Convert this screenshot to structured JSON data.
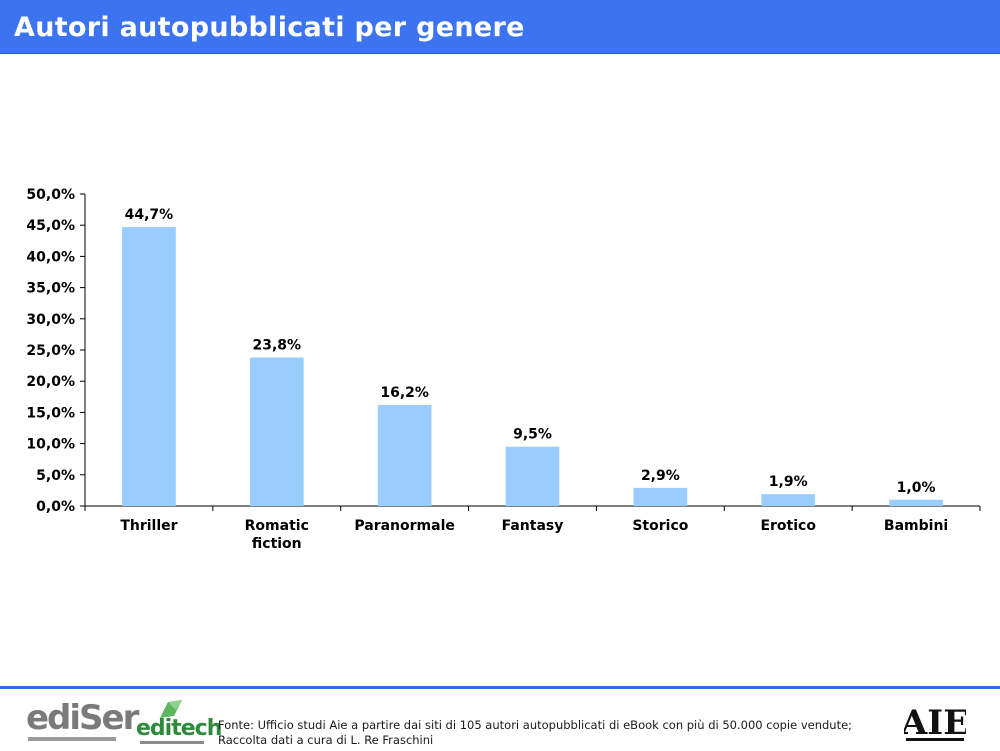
{
  "header": {
    "title": "Autori autopubblicati per genere"
  },
  "chart_data": {
    "type": "bar",
    "categories": [
      "Thriller",
      "Romatic fiction",
      "Paranormale",
      "Fantasy",
      "Storico",
      "Erotico",
      "Bambini"
    ],
    "values": [
      44.7,
      23.8,
      16.2,
      9.5,
      2.9,
      1.9,
      1.0
    ],
    "data_labels": [
      "44,7%",
      "23,8%",
      "16,2%",
      "9,5%",
      "2,9%",
      "1,9%",
      "1,0%"
    ],
    "y_ticks": [
      "0,0%",
      "5,0%",
      "10,0%",
      "15,0%",
      "20,0%",
      "25,0%",
      "30,0%",
      "35,0%",
      "40,0%",
      "45,0%",
      "50,0%"
    ],
    "ylim": [
      0,
      50
    ],
    "title": "",
    "xlabel": "",
    "ylabel": "",
    "grid": false,
    "bar_color": "#99ccff"
  },
  "footer": {
    "source_line1": "Fonte: Ufficio studi Aie a partire dai siti di 105 autori autopubblicati di eBook con più di 50.000 copie vendute;",
    "source_line2": "Raccolta dati a cura di L. Re Fraschini",
    "logo_ediser": "ediSer",
    "logo_editech": "editech",
    "logo_aie": "AIE"
  }
}
